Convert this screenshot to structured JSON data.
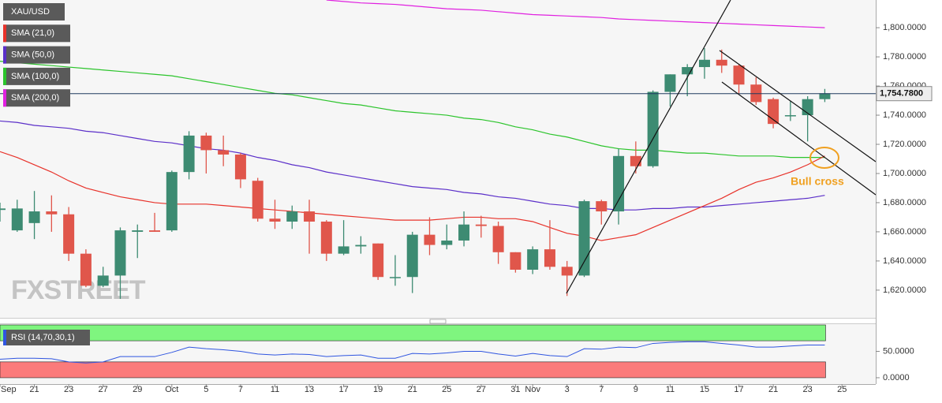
{
  "chart_data": {
    "type": "candlestick",
    "symbol": "XAU/USD",
    "watermark": "FXSTREET",
    "annotation": "Bull cross",
    "categories": [
      "Sep",
      null,
      "21",
      null,
      "23",
      null,
      "27",
      null,
      "29",
      null,
      "Oct",
      null,
      "5",
      null,
      "7",
      null,
      "11",
      null,
      "13",
      null,
      "17",
      null,
      "19",
      null,
      "21",
      null,
      "25",
      null,
      "27",
      null,
      "31",
      "Nov",
      null,
      "3",
      null,
      "7",
      null,
      "9",
      null,
      "11",
      null,
      "15",
      null,
      "17",
      null,
      "21",
      null,
      "23",
      null,
      "25"
    ],
    "open": [
      1675,
      1661,
      1666,
      1674,
      1672,
      1645,
      1623,
      1630,
      1660,
      1661,
      1661,
      1701,
      1726,
      1716,
      1713,
      1695,
      1669,
      1667,
      1674,
      1667,
      1645,
      1650,
      1652,
      1629,
      1629,
      1658,
      1651,
      1654,
      1665,
      1664,
      1646,
      1634,
      1648,
      1636,
      1630,
      1681,
      1674,
      1712,
      1705,
      1756,
      1768,
      1773,
      1778,
      1774,
      1761,
      1751,
      1740,
      1740,
      1751,
      null
    ],
    "high": [
      1680,
      1682,
      1688,
      1685,
      1677,
      1648,
      1636,
      1663,
      1665,
      1673,
      1702,
      1729,
      1728,
      1726,
      1714,
      1697,
      1682,
      1678,
      1682,
      1668,
      1668,
      1657,
      1652,
      1644,
      1660,
      1670,
      1665,
      1674,
      1671,
      1667,
      1646,
      1650,
      1668,
      1640,
      1682,
      1682,
      1717,
      1722,
      1757,
      1768,
      1775,
      1786,
      1785,
      1775,
      1766,
      1752,
      1750,
      1753,
      1758,
      null
    ],
    "low": [
      1667,
      1660,
      1655,
      1660,
      1640,
      1622,
      1622,
      1614,
      1642,
      1660,
      1660,
      1696,
      1700,
      1705,
      1690,
      1667,
      1662,
      1662,
      1645,
      1640,
      1644,
      1645,
      1627,
      1623,
      1618,
      1644,
      1648,
      1650,
      1656,
      1638,
      1632,
      1631,
      1634,
      1616,
      1629,
      1665,
      1665,
      1700,
      1704,
      1746,
      1753,
      1765,
      1769,
      1755,
      1747,
      1731,
      1736,
      1722,
      1749,
      null
    ],
    "close": [
      1676,
      1676,
      1674,
      1672,
      1645,
      1623,
      1630,
      1661,
      1661,
      1660,
      1701,
      1726,
      1716,
      1713,
      1696,
      1669,
      1667,
      1674,
      1667,
      1645,
      1650,
      1651,
      1629,
      1629,
      1658,
      1651,
      1654,
      1665,
      1664,
      1646,
      1634,
      1648,
      1636,
      1630,
      1681,
      1674,
      1712,
      1705,
      1756,
      1768,
      1773,
      1778,
      1774,
      1761,
      1749,
      1734,
      1740,
      1751,
      1755,
      null
    ],
    "up_color": "#3d8b72",
    "down_color": "#e0564b",
    "series": [
      {
        "name": "SMA (21,0)",
        "color": "#e8322a",
        "values": [
          1715,
          1711,
          1706,
          1701,
          1695,
          1690,
          1687,
          1684,
          1682,
          1680,
          1679,
          1679,
          1679,
          1678,
          1677,
          1676,
          1675,
          1674,
          1673,
          1672,
          1671,
          1670,
          1669,
          1668,
          1668,
          1668,
          1669,
          1670,
          1670,
          1669,
          1669,
          1667,
          1663,
          1659,
          1657,
          1654,
          1656,
          1658,
          1663,
          1668,
          1673,
          1678,
          1683,
          1689,
          1694,
          1697,
          1701,
          1706,
          1712,
          null
        ]
      },
      {
        "name": "SMA (50,0)",
        "color": "#5b2fc9",
        "values": [
          1736,
          1735,
          1733,
          1732,
          1731,
          1729,
          1728,
          1726,
          1724,
          1722,
          1721,
          1719,
          1717,
          1716,
          1714,
          1711,
          1709,
          1706,
          1704,
          1701,
          1699,
          1697,
          1695,
          1693,
          1691,
          1690,
          1689,
          1687,
          1686,
          1684,
          1683,
          1681,
          1679,
          1678,
          1676,
          1676,
          1675,
          1675,
          1676,
          1676,
          1677,
          1677,
          1678,
          1679,
          1680,
          1681,
          1682,
          1683,
          1685,
          null
        ]
      },
      {
        "name": "SMA (100,0)",
        "color": "#2bc42b",
        "values": [
          1777,
          1776,
          1775,
          1774,
          1773,
          1772,
          1771,
          1770,
          1769,
          1768,
          1767,
          1765,
          1763,
          1761,
          1759,
          1757,
          1755,
          1754,
          1752,
          1750,
          1748,
          1747,
          1745,
          1743,
          1742,
          1741,
          1740,
          1738,
          1737,
          1735,
          1732,
          1730,
          1727,
          1725,
          1722,
          1719,
          1717,
          1716,
          1716,
          1715,
          1714,
          1714,
          1713,
          1712,
          1712,
          1712,
          1711,
          1711,
          1711,
          null
        ]
      },
      {
        "name": "SMA (200,0)",
        "color": "#e020e0",
        "values": [
          null,
          null,
          null,
          null,
          null,
          null,
          null,
          null,
          null,
          null,
          null,
          null,
          null,
          null,
          null,
          null,
          null,
          null,
          null,
          1819,
          1818,
          1817,
          1816.5,
          1816,
          1815,
          1814,
          1813,
          1812.5,
          1812,
          1811,
          1810,
          1809,
          1808.5,
          1808,
          1807.5,
          1807,
          1806,
          1805.5,
          1805,
          1804.5,
          1804,
          1803.5,
          1803,
          1802.5,
          1802,
          1801.5,
          1801,
          1800.5,
          1800,
          null
        ]
      }
    ],
    "last_price": {
      "value": 1754.78,
      "label": "1,754.7800"
    },
    "ylim": [
      1601,
      1819
    ],
    "yticks": [
      {
        "value": 1620,
        "label": "1,620.0000"
      },
      {
        "value": 1640,
        "label": "1,640.0000"
      },
      {
        "value": 1660,
        "label": "1,660.0000"
      },
      {
        "value": 1680,
        "label": "1,680.0000"
      },
      {
        "value": 1700,
        "label": "1,700.0000"
      },
      {
        "value": 1720,
        "label": "1,720.0000"
      },
      {
        "value": 1740,
        "label": "1,740.0000"
      },
      {
        "value": 1760,
        "label": "1,760.0000"
      },
      {
        "value": 1780,
        "label": "1,780.0000"
      },
      {
        "value": 1800,
        "label": "1,800.0000"
      }
    ],
    "rsi": {
      "name": "RSI (14,70,30,1)",
      "color": "#2f55e0",
      "values": [
        35,
        37,
        37,
        36,
        30,
        28,
        30,
        40,
        40,
        40,
        48,
        58,
        55,
        53,
        50,
        45,
        43,
        45,
        44,
        40,
        42,
        43,
        37,
        37,
        46,
        45,
        47,
        50,
        50,
        45,
        41,
        46,
        42,
        40,
        55,
        54,
        58,
        57,
        65,
        67,
        68,
        68,
        65,
        62,
        58,
        58,
        60,
        62,
        62,
        null
      ],
      "bands": [
        {
          "from": 70,
          "to": 100,
          "color": "#7ff57f"
        },
        {
          "from": 0,
          "to": 30,
          "color": "#fb7b7b"
        }
      ],
      "ylim": [
        -12,
        101.5
      ],
      "yticks": [
        {
          "value": 0,
          "label": "0.0000"
        },
        {
          "value": 50,
          "label": "50.0000"
        }
      ]
    }
  }
}
